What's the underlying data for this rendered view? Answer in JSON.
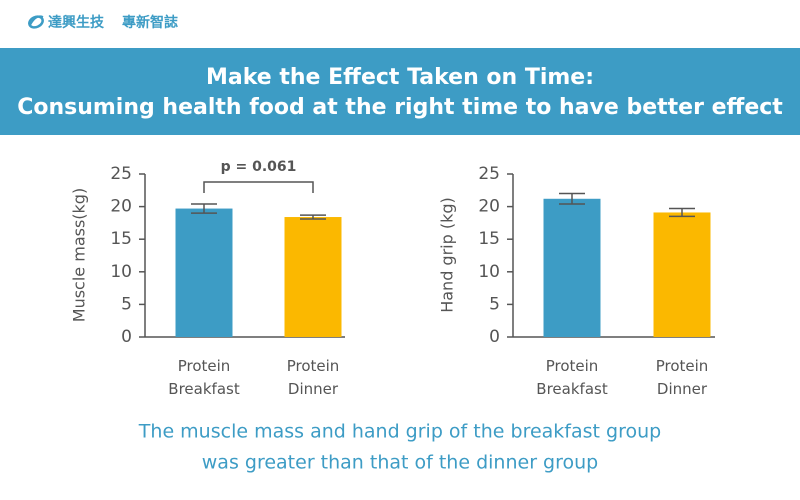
{
  "header": {
    "brand": "達興生技",
    "column": "專新智誌",
    "title_lines": [
      "Make the Effect Taken on Time:",
      "Consuming health food at the right time to have better effect"
    ]
  },
  "chart_data": [
    {
      "type": "bar",
      "ylabel": "Muscle mass(kg)",
      "categories": [
        "Protein Breakfast",
        "Protein Dinner"
      ],
      "values": [
        19.7,
        18.4
      ],
      "errors": [
        0.7,
        0.3
      ],
      "colors": [
        "#3d9cc5",
        "#fbb800"
      ],
      "ylim": [
        0,
        25
      ],
      "yticks": [
        0,
        5,
        10,
        15,
        20,
        25
      ],
      "annotation": "p = 0.061"
    },
    {
      "type": "bar",
      "ylabel": "Hand grip (kg)",
      "categories": [
        "Protein Breakfast",
        "Protein Dinner"
      ],
      "values": [
        21.2,
        19.1
      ],
      "errors": [
        0.8,
        0.6
      ],
      "colors": [
        "#3d9cc5",
        "#fbb800"
      ],
      "ylim": [
        0,
        25
      ],
      "yticks": [
        0,
        5,
        10,
        15,
        20,
        25
      ]
    }
  ],
  "caption_lines": [
    "The muscle mass and hand grip of the breakfast group",
    "was greater than that of the dinner group"
  ]
}
